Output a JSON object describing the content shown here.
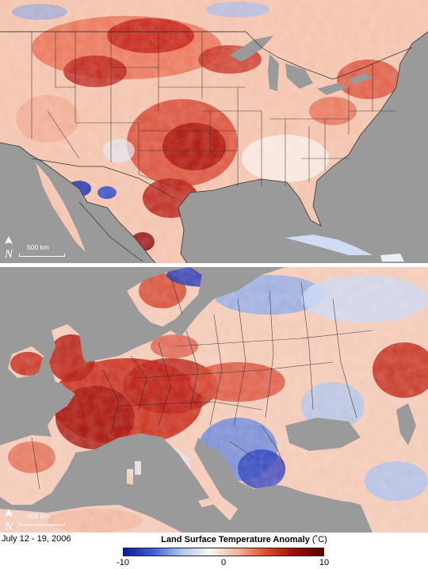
{
  "panels": {
    "us": {
      "region": "North America",
      "scale_label": "500 km"
    },
    "europe": {
      "region": "Europe",
      "scale_label": "500 km"
    }
  },
  "date_label": "July 12 - 19, 2006",
  "legend": {
    "title": "Land Surface Temperature Anomaly",
    "unit": "(˚C)",
    "min_label": "-10",
    "mid_label": "0",
    "max_label": "10",
    "colors": [
      "#0a1a9c",
      "#3a5cd0",
      "#a9c3ef",
      "#f7f7f7",
      "#f6b59a",
      "#de4a2c",
      "#9a0f08",
      "#5a0000"
    ]
  },
  "icons": {
    "north_arrow": "north-arrow-icon"
  }
}
